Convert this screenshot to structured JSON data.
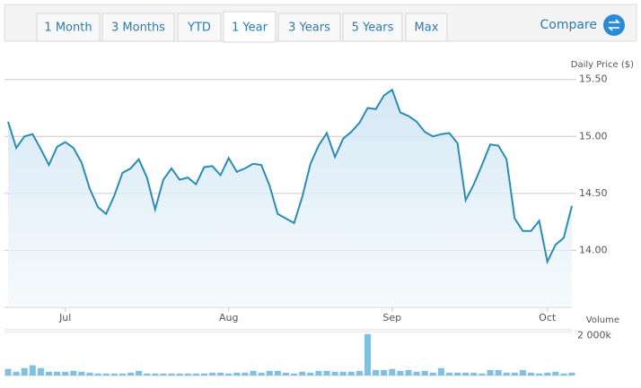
{
  "tabs": [
    "1 Month",
    "3 Months",
    "YTD",
    "1 Year",
    "3 Years",
    "5 Years",
    "Max"
  ],
  "active_tab": 3,
  "compare": "Compare",
  "chart_data": [
    {
      "type": "line",
      "y_label": "Daily Price ($)",
      "color": "#2b8db3",
      "area": true,
      "grid": true,
      "categories": [
        null,
        null,
        null,
        null,
        null,
        null,
        null,
        "Jul",
        null,
        null,
        null,
        null,
        null,
        null,
        null,
        null,
        null,
        null,
        null,
        null,
        null,
        null,
        null,
        null,
        null,
        null,
        null,
        "Aug",
        null,
        null,
        null,
        null,
        null,
        null,
        null,
        null,
        null,
        null,
        null,
        null,
        null,
        null,
        null,
        null,
        null,
        null,
        null,
        "Sep",
        null,
        null,
        null,
        null,
        null,
        null,
        null,
        null,
        null,
        null,
        null,
        null,
        null,
        null,
        null,
        null,
        null,
        null,
        "Oct",
        null,
        null,
        null
      ],
      "values": [
        15.13,
        14.9,
        15.0,
        15.02,
        14.89,
        14.75,
        14.91,
        14.95,
        14.9,
        14.77,
        14.54,
        14.38,
        14.32,
        14.48,
        14.68,
        14.72,
        14.8,
        14.64,
        14.36,
        14.62,
        14.72,
        14.62,
        14.64,
        14.58,
        14.73,
        14.74,
        14.66,
        14.81,
        14.69,
        14.72,
        14.76,
        14.75,
        14.57,
        14.32,
        14.28,
        14.24,
        14.47,
        14.76,
        14.92,
        15.03,
        14.82,
        14.98,
        15.04,
        15.12,
        15.25,
        15.24,
        15.36,
        15.41,
        15.21,
        15.18,
        15.13,
        15.04,
        15.0,
        15.02,
        15.03,
        14.94,
        14.44,
        14.58,
        14.75,
        14.93,
        14.92,
        14.8,
        14.28,
        14.17,
        14.17,
        14.26,
        13.9,
        14.05,
        14.11,
        14.39
      ],
      "ylim": [
        13.5,
        15.6
      ],
      "yticks": [
        {
          "value": 14,
          "label": "14.00"
        },
        {
          "value": 14.5,
          "label": "14.50"
        },
        {
          "value": 15,
          "label": "15.00"
        },
        {
          "value": 15.5,
          "label": "15.50"
        }
      ]
    },
    {
      "type": "bar",
      "y_label": "Volume",
      "color": "#7fc1e3",
      "values": [
        300,
        170,
        340,
        470,
        340,
        170,
        170,
        170,
        210,
        170,
        130,
        90,
        90,
        90,
        90,
        130,
        210,
        90,
        90,
        90,
        90,
        90,
        90,
        90,
        90,
        130,
        130,
        90,
        130,
        130,
        210,
        130,
        210,
        210,
        130,
        90,
        170,
        130,
        210,
        210,
        170,
        170,
        170,
        210,
        1900,
        250,
        250,
        300,
        210,
        250,
        170,
        210,
        130,
        340,
        130,
        130,
        130,
        130,
        90,
        250,
        250,
        130,
        130,
        250,
        130,
        90,
        130,
        170,
        90,
        130
      ],
      "ylim": [
        0,
        2100
      ],
      "yticks": [
        {
          "value": 2000,
          "label": "2 000k"
        }
      ]
    }
  ]
}
